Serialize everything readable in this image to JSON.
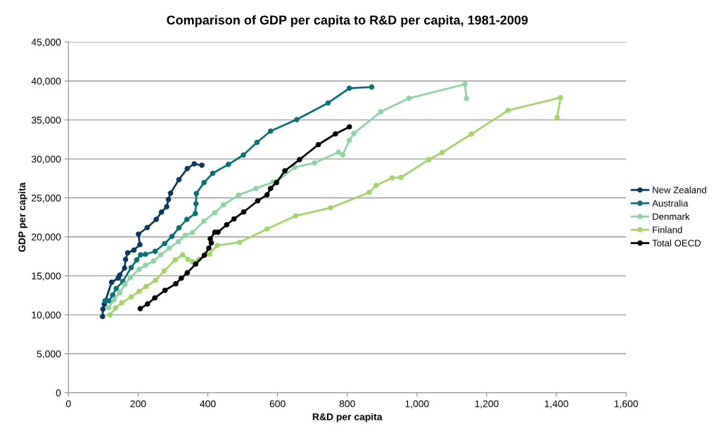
{
  "chart_data": {
    "type": "line",
    "title": "Comparison of GDP per capita to R&D per capita, 1981-2009",
    "xlabel": "R&D per capita",
    "ylabel": "GDP per capita",
    "xlim": [
      0,
      1600
    ],
    "xticks": [
      0,
      200,
      400,
      600,
      800,
      {
        "value": 1000,
        "label": "1,000"
      },
      {
        "value": 1200,
        "label": "1,200"
      },
      {
        "value": 1400,
        "label": "1,400"
      },
      {
        "value": 1600,
        "label": "1,600"
      }
    ],
    "ylim": [
      0,
      45000
    ],
    "yticks": [
      0,
      {
        "value": 5000,
        "label": "5,000"
      },
      {
        "value": 10000,
        "label": "10,000"
      },
      {
        "value": 15000,
        "label": "15,000"
      },
      {
        "value": 20000,
        "label": "20,000"
      },
      {
        "value": 25000,
        "label": "25,000"
      },
      {
        "value": 30000,
        "label": "30,000"
      },
      {
        "value": 35000,
        "label": "35,000"
      },
      {
        "value": 40000,
        "label": "40,000"
      },
      {
        "value": 45000,
        "label": "45,000"
      }
    ],
    "grid": "y",
    "legend": "right",
    "marker": "circle",
    "line_style": "solid",
    "series": [
      {
        "name": "New Zealand",
        "color": "#0d3a5c",
        "x": [
          98,
          99,
          103,
          124,
          143,
          147,
          161,
          164,
          170,
          188,
          205,
          201,
          226,
          252,
          267,
          282,
          287,
          293,
          317,
          341,
          361,
          383
        ],
        "values": [
          9770,
          10730,
          11360,
          14180,
          14700,
          15090,
          15990,
          17100,
          17940,
          18300,
          19000,
          20350,
          21190,
          22240,
          23170,
          23870,
          24800,
          25600,
          27350,
          28760,
          29370,
          29190
        ]
      },
      {
        "name": "Australia",
        "color": "#0a7075",
        "x": [
          105,
          116,
          127,
          137,
          156,
          180,
          196,
          207,
          221,
          249,
          276,
          297,
          317,
          340,
          364,
          366,
          367,
          389,
          414,
          459,
          502,
          541,
          580,
          655,
          745,
          806,
          870
        ],
        "values": [
          11790,
          11790,
          12530,
          13370,
          14280,
          16050,
          17040,
          17700,
          17760,
          18150,
          19140,
          20050,
          21160,
          22240,
          22990,
          24250,
          25550,
          26960,
          28160,
          29300,
          30500,
          32130,
          33570,
          35050,
          37180,
          39070,
          39220
        ]
      },
      {
        "name": "Denmark",
        "color": "#8fd3a5",
        "x": [
          115,
          131,
          147,
          162,
          178,
          203,
          221,
          244,
          265,
          289,
          316,
          335,
          356,
          388,
          420,
          445,
          488,
          538,
          587,
          597,
          649,
          706,
          775,
          787,
          806,
          819,
          896,
          977,
          1138,
          1142
        ],
        "values": [
          10880,
          11930,
          12830,
          13890,
          14790,
          15840,
          16350,
          16890,
          17700,
          18550,
          19390,
          20200,
          20560,
          21990,
          23110,
          24100,
          25360,
          26210,
          27020,
          27050,
          28920,
          29490,
          30870,
          30510,
          32370,
          33270,
          36040,
          37780,
          39590,
          37750
        ]
      },
      {
        "name": "Finland",
        "color": "#9fd46a",
        "x": [
          119,
          135,
          153,
          180,
          203,
          223,
          250,
          275,
          306,
          328,
          343,
          356,
          375,
          405,
          427,
          491,
          570,
          652,
          752,
          863,
          883,
          929,
          954,
          1034,
          1072,
          1156,
          1261,
          1412,
          1402
        ],
        "values": [
          9980,
          10880,
          11540,
          12290,
          13010,
          13640,
          14430,
          15630,
          17040,
          17700,
          17110,
          16800,
          17110,
          17790,
          18910,
          19300,
          21010,
          22700,
          23720,
          25700,
          26600,
          27570,
          27620,
          29900,
          30810,
          33180,
          36220,
          37870,
          35320
        ]
      },
      {
        "name": "Total OECD",
        "color": "#000000",
        "x": [
          206,
          227,
          248,
          277,
          308,
          324,
          341,
          365,
          390,
          403,
          410,
          407,
          420,
          429,
          454,
          475,
          503,
          543,
          570,
          580,
          597,
          621,
          663,
          717,
          766,
          806
        ],
        "values": [
          10790,
          11390,
          12170,
          13140,
          13980,
          14700,
          15390,
          16500,
          17650,
          18550,
          19230,
          19750,
          20590,
          20590,
          21550,
          22300,
          23200,
          24620,
          25400,
          26210,
          26960,
          28470,
          29910,
          31830,
          33210,
          34110
        ]
      }
    ]
  }
}
